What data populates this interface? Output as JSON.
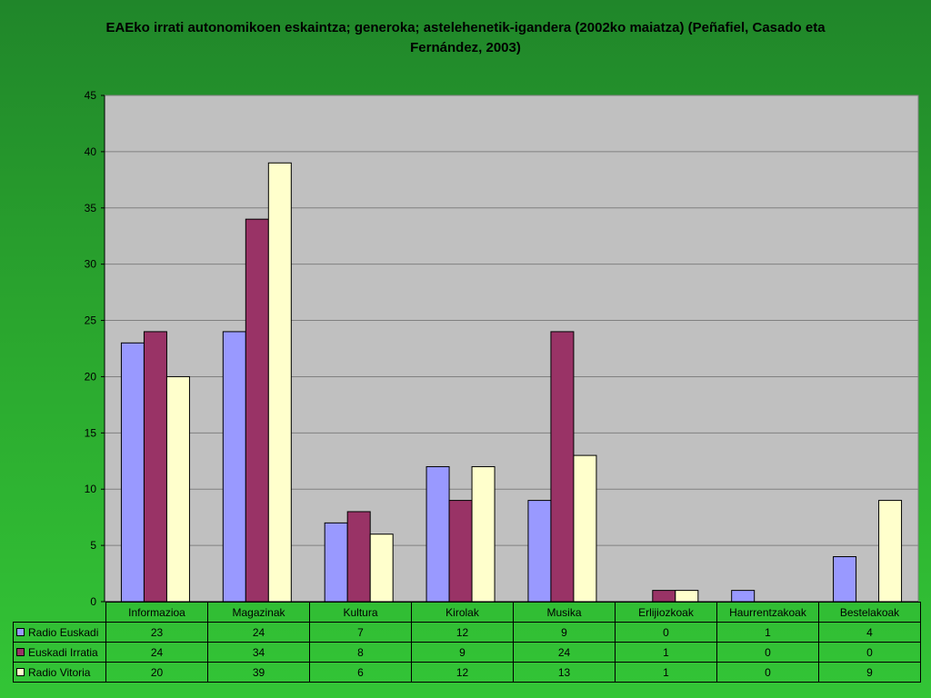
{
  "chart_data": {
    "type": "bar",
    "title": "EAEko irrati autonomikoen eskaintza; generoka; astelehenetik-igandera (2002ko maiatza) (Peñafiel, Casado eta Fernández, 2003)",
    "categories": [
      "Informazioa",
      "Magazinak",
      "Kultura",
      "Kirolak",
      "Musika",
      "Erlijiozkoak",
      "Haurrentzakoak",
      "Bestelakoak"
    ],
    "series": [
      {
        "name": "Radio Euskadi",
        "color": "#9999ff",
        "values": [
          23,
          24,
          7,
          12,
          9,
          0,
          1,
          4
        ]
      },
      {
        "name": "Euskadi Irratia",
        "color": "#993366",
        "values": [
          24,
          34,
          8,
          9,
          24,
          1,
          0,
          0
        ]
      },
      {
        "name": "Radio Vitoria",
        "color": "#ffffcc",
        "values": [
          20,
          39,
          6,
          12,
          13,
          1,
          0,
          9
        ]
      }
    ],
    "ylim": [
      0,
      45
    ],
    "yticks": [
      0,
      5,
      10,
      15,
      20,
      25,
      30,
      35,
      40,
      45
    ],
    "grid": true,
    "legend": "data-table",
    "plot_background": "#c0c0c0"
  }
}
